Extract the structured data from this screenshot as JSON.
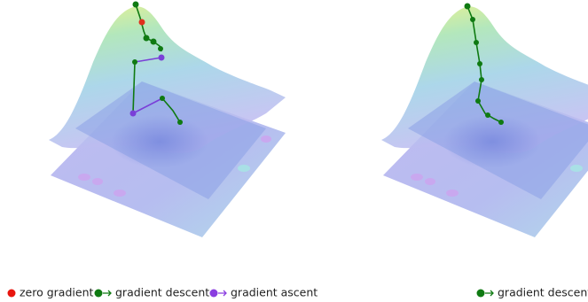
{
  "legends": [
    {
      "items": [
        {
          "label": "zero gradient"
        },
        {
          "label": "gradient descent"
        },
        {
          "label": "gradient ascent"
        }
      ]
    },
    {
      "items": [
        {
          "label": "gradient descent"
        }
      ]
    }
  ]
}
